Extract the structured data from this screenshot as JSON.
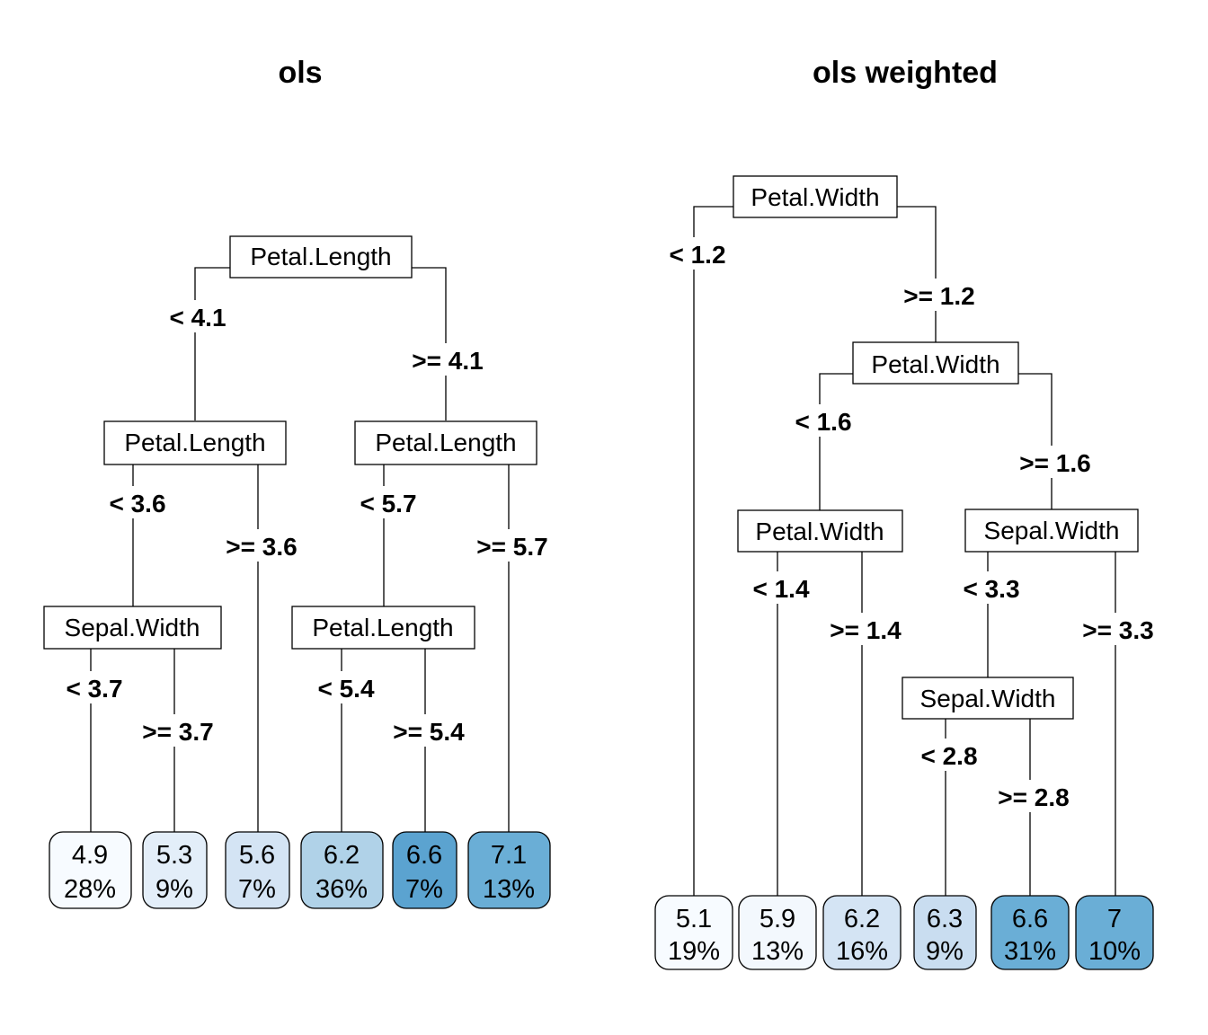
{
  "trees": [
    {
      "title": "ols",
      "nodes": [
        {
          "id": "n1",
          "label": "Petal.Length"
        },
        {
          "id": "n2",
          "label": "Petal.Length"
        },
        {
          "id": "n3",
          "label": "Petal.Length"
        },
        {
          "id": "n4",
          "label": "Sepal.Width"
        },
        {
          "id": "n5",
          "label": "Petal.Length"
        }
      ],
      "conditions": [
        {
          "id": "c1",
          "text": "< 4.1"
        },
        {
          "id": "c2",
          "text": ">= 4.1"
        },
        {
          "id": "c3",
          "text": "< 3.6"
        },
        {
          "id": "c4",
          "text": ">= 3.6"
        },
        {
          "id": "c5",
          "text": "< 5.7"
        },
        {
          "id": "c6",
          "text": ">= 5.7"
        },
        {
          "id": "c7",
          "text": "< 3.7"
        },
        {
          "id": "c8",
          "text": ">= 3.7"
        },
        {
          "id": "c9",
          "text": "< 5.4"
        },
        {
          "id": "c10",
          "text": ">= 5.4"
        }
      ],
      "leaves": [
        {
          "id": "l1",
          "value": "4.9",
          "percent": "28%",
          "color": "#f7fbff"
        },
        {
          "id": "l2",
          "value": "5.3",
          "percent": "9%",
          "color": "#e3eef9"
        },
        {
          "id": "l3",
          "value": "5.6",
          "percent": "7%",
          "color": "#d4e4f4"
        },
        {
          "id": "l4",
          "value": "6.2",
          "percent": "36%",
          "color": "#b0d2e8"
        },
        {
          "id": "l5",
          "value": "6.6",
          "percent": "7%",
          "color": "#5ba3d0"
        },
        {
          "id": "l6",
          "value": "7.1",
          "percent": "13%",
          "color": "#6aaed6"
        }
      ]
    },
    {
      "title": "ols weighted",
      "nodes": [
        {
          "id": "m1",
          "label": "Petal.Width"
        },
        {
          "id": "m2",
          "label": "Petal.Width"
        },
        {
          "id": "m3",
          "label": "Petal.Width"
        },
        {
          "id": "m4",
          "label": "Sepal.Width"
        },
        {
          "id": "m5",
          "label": "Sepal.Width"
        }
      ],
      "conditions": [
        {
          "id": "d1",
          "text": "< 1.2"
        },
        {
          "id": "d2",
          "text": ">= 1.2"
        },
        {
          "id": "d3",
          "text": "< 1.6"
        },
        {
          "id": "d4",
          "text": ">= 1.6"
        },
        {
          "id": "d5",
          "text": "< 1.4"
        },
        {
          "id": "d6",
          "text": ">= 1.4"
        },
        {
          "id": "d7",
          "text": "< 3.3"
        },
        {
          "id": "d8",
          "text": ">= 3.3"
        },
        {
          "id": "d9",
          "text": "< 2.8"
        },
        {
          "id": "d10",
          "text": ">= 2.8"
        }
      ],
      "leaves": [
        {
          "id": "k1",
          "value": "5.1",
          "percent": "19%",
          "color": "#f7fbff"
        },
        {
          "id": "k2",
          "value": "5.9",
          "percent": "13%",
          "color": "#f3f8fd"
        },
        {
          "id": "k3",
          "value": "6.2",
          "percent": "16%",
          "color": "#d4e4f4"
        },
        {
          "id": "k4",
          "value": "6.3",
          "percent": "9%",
          "color": "#c9ddf0"
        },
        {
          "id": "k5",
          "value": "6.6",
          "percent": "31%",
          "color": "#6aaed6"
        },
        {
          "id": "k6",
          "value": "7",
          "percent": "10%",
          "color": "#6aaed6"
        }
      ]
    }
  ]
}
